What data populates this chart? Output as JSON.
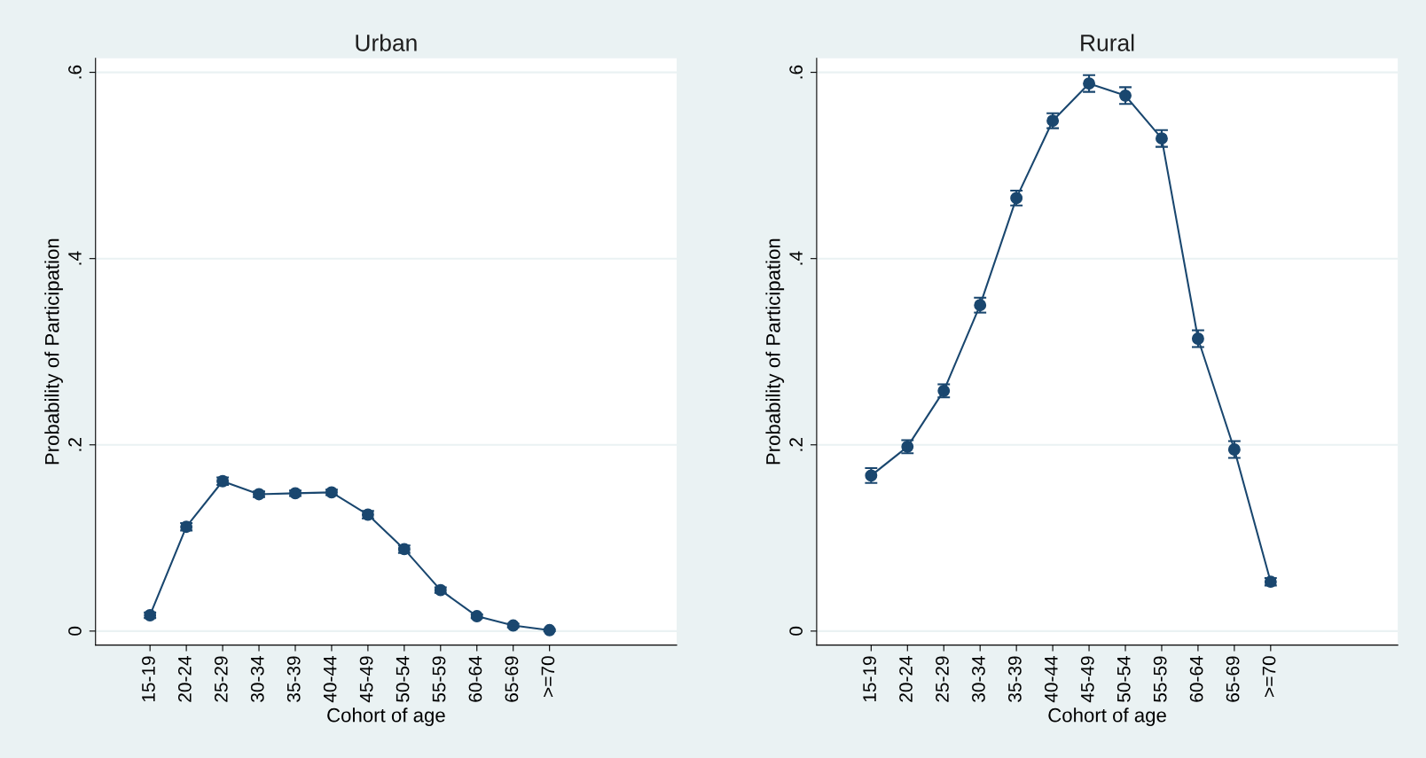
{
  "chart_data": [
    {
      "type": "line",
      "title": "Urban",
      "xlabel": "Cohort of age",
      "ylabel": "Probability of Participation",
      "categories": [
        "15-19",
        "20-24",
        "25-29",
        "30-34",
        "35-39",
        "40-44",
        "45-49",
        "50-54",
        "55-59",
        "60-64",
        "65-69",
        ">=70"
      ],
      "series": [
        {
          "color": "#1a476f",
          "values": [
            0.017,
            0.112,
            0.161,
            0.147,
            0.148,
            0.149,
            0.125,
            0.088,
            0.044,
            0.016,
            0.006,
            0.001
          ],
          "errors": [
            0.003,
            0.004,
            0.004,
            0.003,
            0.003,
            0.003,
            0.004,
            0.004,
            0.003,
            0.002,
            0.002,
            0.001
          ]
        }
      ],
      "ylim": [
        -0.015,
        0.615
      ],
      "yticks": [
        {
          "value": 0,
          "label": "0"
        },
        {
          "value": 0.2,
          "label": ".2"
        },
        {
          "value": 0.4,
          "label": ".4"
        },
        {
          "value": 0.6,
          "label": ".6"
        }
      ],
      "grid": "y",
      "marker": "circle",
      "line_style": "solid"
    },
    {
      "type": "line",
      "title": "Rural",
      "xlabel": "Cohort of age",
      "ylabel": "Probability of Participation",
      "categories": [
        "15-19",
        "20-24",
        "25-29",
        "30-34",
        "35-39",
        "40-44",
        "45-49",
        "50-54",
        "55-59",
        "60-64",
        "65-69",
        ">=70"
      ],
      "series": [
        {
          "color": "#1a476f",
          "values": [
            0.167,
            0.198,
            0.258,
            0.35,
            0.465,
            0.548,
            0.588,
            0.575,
            0.529,
            0.314,
            0.195,
            0.053
          ],
          "errors": [
            0.008,
            0.007,
            0.007,
            0.008,
            0.008,
            0.008,
            0.009,
            0.009,
            0.009,
            0.009,
            0.009,
            0.004
          ]
        }
      ],
      "ylim": [
        -0.015,
        0.615
      ],
      "yticks": [
        {
          "value": 0,
          "label": "0"
        },
        {
          "value": 0.2,
          "label": ".2"
        },
        {
          "value": 0.4,
          "label": ".4"
        },
        {
          "value": 0.6,
          "label": ".6"
        }
      ],
      "grid": "y",
      "marker": "circle",
      "line_style": "solid"
    }
  ]
}
